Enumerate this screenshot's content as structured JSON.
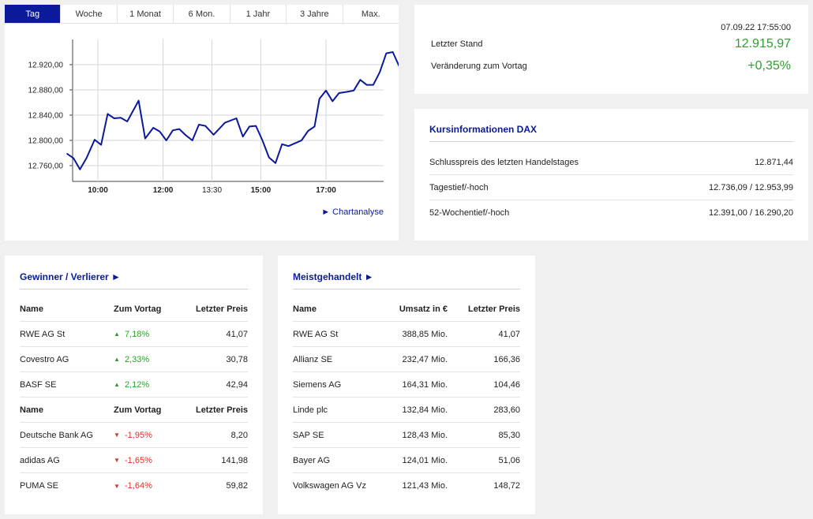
{
  "tabs": [
    "Tag",
    "Woche",
    "1 Monat",
    "6 Mon.",
    "1 Jahr",
    "3 Jahre",
    "Max."
  ],
  "active_tab": 0,
  "chart_link": "► Chartanalyse",
  "chart_data": {
    "type": "line",
    "x_ticks": [
      "10:00",
      "12:00",
      "13:30",
      "15:00",
      "17:00"
    ],
    "y_ticks": [
      "12.760,00",
      "12.800,00",
      "12.840,00",
      "12.880,00",
      "12.920,00"
    ],
    "ylim": [
      12735,
      12960
    ],
    "x_hours": [
      9.0,
      18.0
    ],
    "grid": true,
    "series": [
      {
        "color": "#0a1a9a",
        "points": [
          [
            9.05,
            12779
          ],
          [
            9.25,
            12772
          ],
          [
            9.45,
            12754
          ],
          [
            9.65,
            12772
          ],
          [
            9.9,
            12801
          ],
          [
            10.1,
            12793
          ],
          [
            10.3,
            12842
          ],
          [
            10.5,
            12835
          ],
          [
            10.7,
            12836
          ],
          [
            10.9,
            12830
          ],
          [
            11.25,
            12863
          ],
          [
            11.45,
            12803
          ],
          [
            11.7,
            12820
          ],
          [
            11.9,
            12814
          ],
          [
            12.1,
            12800
          ],
          [
            12.3,
            12816
          ],
          [
            12.5,
            12818
          ],
          [
            12.7,
            12808
          ],
          [
            12.9,
            12800
          ],
          [
            13.1,
            12825
          ],
          [
            13.3,
            12823
          ],
          [
            13.55,
            12809
          ],
          [
            13.9,
            12828
          ],
          [
            14.25,
            12835
          ],
          [
            14.45,
            12806
          ],
          [
            14.65,
            12822
          ],
          [
            14.85,
            12823
          ],
          [
            15.05,
            12800
          ],
          [
            15.25,
            12773
          ],
          [
            15.45,
            12764
          ],
          [
            15.65,
            12794
          ],
          [
            15.85,
            12791
          ],
          [
            16.25,
            12800
          ],
          [
            16.45,
            12815
          ],
          [
            16.65,
            12822
          ],
          [
            16.8,
            12866
          ],
          [
            17.0,
            12879
          ],
          [
            17.2,
            12862
          ],
          [
            17.4,
            12875
          ],
          [
            17.65,
            12877
          ],
          [
            17.85,
            12879
          ],
          [
            18.05,
            12896
          ],
          [
            18.25,
            12888
          ],
          [
            18.45,
            12888
          ],
          [
            18.65,
            12908
          ],
          [
            18.85,
            12938
          ],
          [
            19.05,
            12940
          ],
          [
            19.25,
            12917
          ],
          [
            19.45,
            12917
          ]
        ]
      }
    ]
  },
  "quote": {
    "datetime": "07.09.22 17:55:00",
    "last_label": "Letzter Stand",
    "last_value": "12.915,97",
    "change_label": "Veränderung zum Vortag",
    "change_value": "+0,35%"
  },
  "info": {
    "title": "Kursinformationen DAX",
    "rows": [
      {
        "label": "Schlusspreis des letzten Handelstages",
        "value": "12.871,44"
      },
      {
        "label": "Tagestief/-hoch",
        "value": "12.736,09 / 12.953,99"
      },
      {
        "label": "52-Wochentief/-hoch",
        "value": "12.391,00 / 16.290,20"
      }
    ]
  },
  "gainers": {
    "title": "Gewinner / Verlierer ►",
    "header": {
      "name": "Name",
      "change": "Zum Vortag",
      "price": "Letzter Preis"
    },
    "up_arrow": "▲",
    "down_arrow": "▼",
    "winners": [
      {
        "name": "RWE AG St",
        "change": "7,18%",
        "price": "41,07"
      },
      {
        "name": "Covestro AG",
        "change": "2,33%",
        "price": "30,78"
      },
      {
        "name": "BASF SE",
        "change": "2,12%",
        "price": "42,94"
      }
    ],
    "losers": [
      {
        "name": "Deutsche Bank AG",
        "change": "-1,95%",
        "price": "8,20"
      },
      {
        "name": "adidas AG",
        "change": "-1,65%",
        "price": "141,98"
      },
      {
        "name": "PUMA SE",
        "change": "-1,64%",
        "price": "59,82"
      }
    ]
  },
  "active": {
    "title": "Meistgehandelt ►",
    "header": {
      "name": "Name",
      "volume": "Umsatz in €",
      "price": "Letzter Preis"
    },
    "rows": [
      {
        "name": "RWE AG St",
        "volume": "388,85 Mio.",
        "price": "41,07"
      },
      {
        "name": "Allianz SE",
        "volume": "232,47 Mio.",
        "price": "166,36"
      },
      {
        "name": "Siemens AG",
        "volume": "164,31 Mio.",
        "price": "104,46"
      },
      {
        "name": "Linde plc",
        "volume": "132,84 Mio.",
        "price": "283,60"
      },
      {
        "name": "SAP SE",
        "volume": "128,43 Mio.",
        "price": "85,30"
      },
      {
        "name": "Bayer AG",
        "volume": "124,01 Mio.",
        "price": "51,06"
      },
      {
        "name": "Volkswagen AG Vz",
        "volume": "121,43 Mio.",
        "price": "148,72"
      }
    ]
  }
}
